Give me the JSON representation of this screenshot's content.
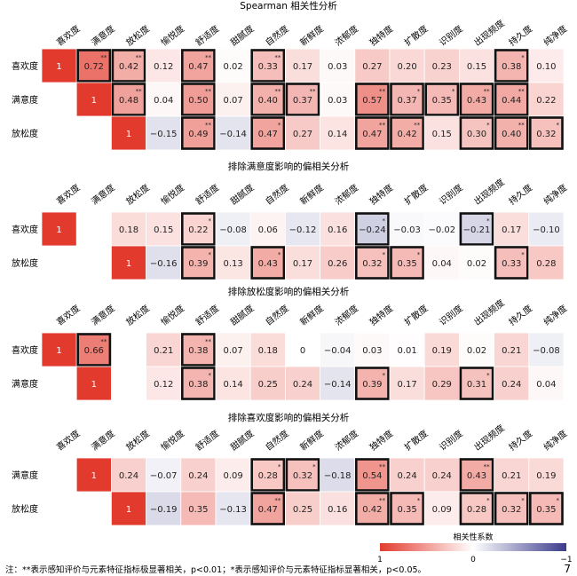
{
  "chart_data": {
    "type": "heatmap",
    "columns": [
      "喜欢度",
      "满意度",
      "放松度",
      "愉悦度",
      "舒适度",
      "甜腻度",
      "自然度",
      "新鲜度",
      "浓郁度",
      "独特度",
      "扩散度",
      "识别度",
      "出现频度",
      "持久度",
      "纯净度"
    ],
    "panels": [
      {
        "title": "Spearman 相关性分析",
        "rows": [
          {
            "label": "喜欢度",
            "values": [
              1,
              0.72,
              0.42,
              0.12,
              0.47,
              0.02,
              0.33,
              0.17,
              0.03,
              0.27,
              0.2,
              0.23,
              0.15,
              0.38,
              0.1
            ],
            "sig": [
              "",
              "**",
              "**",
              "",
              "**",
              "",
              "**",
              "",
              "",
              "",
              "",
              "",
              "",
              "*",
              ""
            ]
          },
          {
            "label": "满意度",
            "values": [
              null,
              1,
              0.48,
              0.04,
              0.5,
              0.07,
              0.4,
              0.37,
              0.03,
              0.57,
              0.37,
              0.35,
              0.43,
              0.44,
              0.22
            ],
            "sig": [
              "",
              "",
              "**",
              "",
              "**",
              "",
              "**",
              "**",
              "",
              "**",
              "*",
              "*",
              "**",
              "**",
              ""
            ]
          },
          {
            "label": "放松度",
            "values": [
              null,
              null,
              1,
              -0.15,
              0.49,
              -0.14,
              0.47,
              0.27,
              0.14,
              0.47,
              0.42,
              0.15,
              0.3,
              0.4,
              0.32
            ],
            "sig": [
              "",
              "",
              "",
              "",
              "**",
              "",
              "*",
              "",
              "",
              "**",
              "**",
              "",
              "*",
              "**",
              "*"
            ]
          }
        ]
      },
      {
        "title": "排除满意度影响的偏相关分析",
        "rows": [
          {
            "label": "喜欢度",
            "values": [
              1,
              null,
              0.18,
              0.15,
              0.22,
              -0.08,
              0.06,
              -0.12,
              0.16,
              -0.24,
              -0.03,
              -0.02,
              -0.21,
              0.17,
              -0.1
            ],
            "sig": [
              "",
              "",
              "",
              "",
              "*",
              "",
              "",
              "",
              "",
              "*",
              "",
              "",
              "*",
              "",
              ""
            ]
          },
          {
            "label": "放松度",
            "values": [
              null,
              null,
              1,
              -0.16,
              0.39,
              0.13,
              0.43,
              0.17,
              0.26,
              0.32,
              0.35,
              0.04,
              0.02,
              0.33,
              0.28
            ],
            "sig": [
              "",
              "",
              "",
              "",
              "*",
              "",
              "*",
              "",
              "",
              "*",
              "*",
              "",
              "",
              "*",
              ""
            ]
          }
        ]
      },
      {
        "title": "排除放松度影响的偏相关分析",
        "rows": [
          {
            "label": "喜欢度",
            "values": [
              1,
              0.66,
              null,
              0.21,
              0.38,
              0.07,
              0.18,
              0,
              -0.04,
              0.03,
              0.01,
              0.19,
              0.02,
              0.21,
              -0.08
            ],
            "sig": [
              "",
              "**",
              "",
              "",
              "**",
              "",
              "",
              "",
              "",
              "",
              "",
              "",
              "",
              "",
              ""
            ]
          },
          {
            "label": "满意度",
            "values": [
              null,
              1,
              null,
              0.12,
              0.38,
              0.14,
              0.25,
              0.24,
              -0.14,
              0.39,
              0.17,
              0.29,
              0.31,
              0.24,
              0.04
            ],
            "sig": [
              "",
              "",
              "",
              "",
              "*",
              "",
              "",
              "",
              "",
              "*",
              "",
              "",
              "*",
              "",
              ""
            ]
          }
        ]
      },
      {
        "title": "排除喜欢度影响的偏相关分析",
        "rows": [
          {
            "label": "满意度",
            "values": [
              null,
              1,
              0.24,
              -0.07,
              0.24,
              0.09,
              0.28,
              0.32,
              -0.18,
              0.54,
              0.24,
              0.24,
              0.43,
              0.21,
              0.19
            ],
            "sig": [
              "",
              "",
              "",
              "",
              "",
              "",
              "*",
              "*",
              "",
              "**",
              "",
              "",
              "**",
              "",
              ""
            ]
          },
          {
            "label": "放松度",
            "values": [
              null,
              null,
              1,
              -0.19,
              0.35,
              -0.13,
              0.47,
              0.25,
              0.16,
              0.42,
              0.35,
              0.09,
              0.28,
              0.32,
              0.35
            ],
            "sig": [
              "",
              "",
              "",
              "",
              "",
              "",
              "**",
              "",
              "",
              "**",
              "*",
              "",
              "*",
              "*",
              "*"
            ]
          }
        ]
      }
    ],
    "colorbar": {
      "title": "相关性系数",
      "ticks": [
        "1",
        "0",
        "−1"
      ],
      "range": [
        1,
        -1
      ],
      "colors": {
        "positive": "#e23b2e",
        "zero": "#ffffff",
        "negative": "#3b3b8c"
      }
    },
    "note": "注：**表示感知评价与元素特征指标极显著相关，p<0.01；*表示感知评价与元素特征指标显著相关，p<0.05。",
    "page_number": "7"
  }
}
